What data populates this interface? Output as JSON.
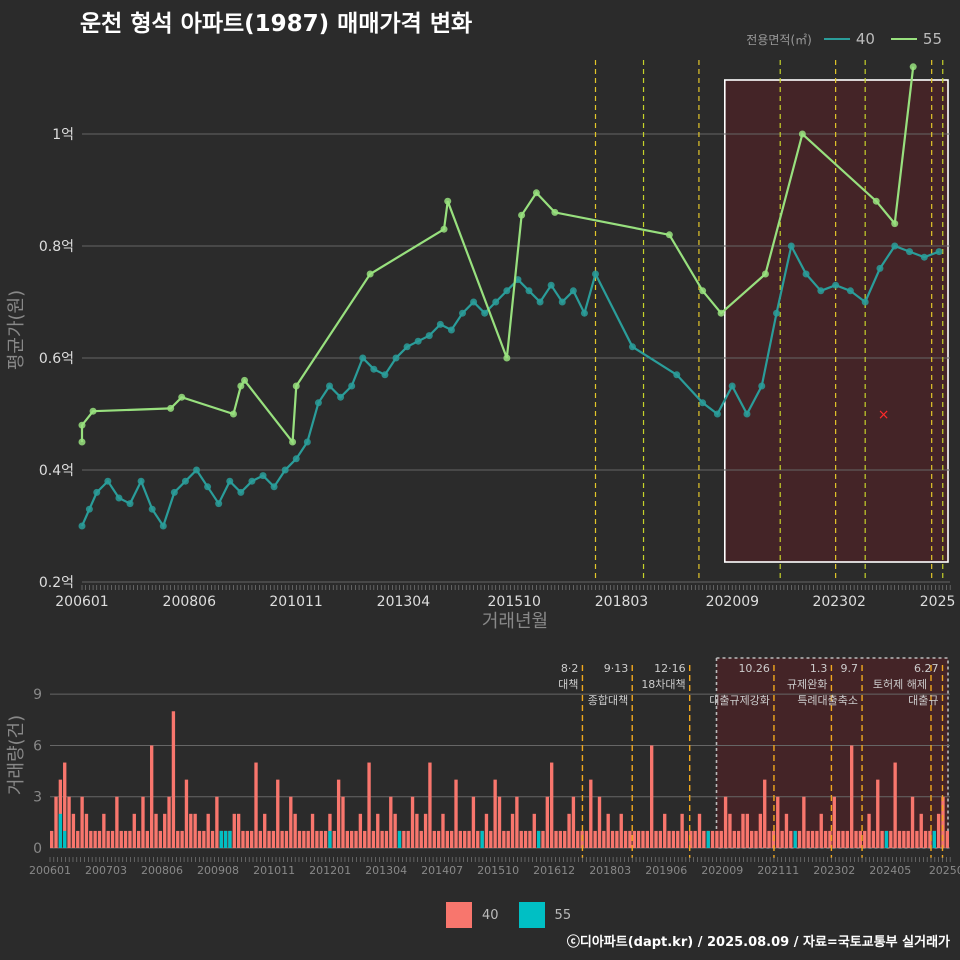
{
  "title": "운천 형석 아파트(1987) 매매가격 변화",
  "legend": {
    "title": "전용면적(㎡)",
    "items": [
      {
        "label": "40",
        "line_color": "#2a9d9a",
        "bar_color": "#f8766d"
      },
      {
        "label": "55",
        "line_color": "#98e07e",
        "bar_color": "#00bfc4"
      }
    ]
  },
  "footer": "ⓒ디아파트(dapt.kr) / 2025.08.09 / 자료=국토교통부 실거래가",
  "chart_data": [
    {
      "type": "line",
      "xlabel": "거래년월",
      "ylabel": "평균가(원)",
      "ylim": [
        0.2,
        1.15
      ],
      "y_ticks": [
        {
          "v": 0.2,
          "label": "0.2억"
        },
        {
          "v": 0.4,
          "label": "0.4억"
        },
        {
          "v": 0.6,
          "label": "0.6억"
        },
        {
          "v": 0.8,
          "label": "0.8억"
        },
        {
          "v": 1.0,
          "label": "1억"
        }
      ],
      "x_ticks": [
        "200601",
        "200806",
        "201011",
        "201304",
        "201510",
        "201803",
        "202009",
        "202302",
        "2025"
      ],
      "policy_lines": [
        "2017.08",
        "2018.09",
        "2019.12",
        "2021.10",
        "2023.01",
        "2023.09",
        "2025.03",
        "2025.06"
      ],
      "highlight": {
        "from": "2020.07",
        "to": "2025.07"
      },
      "marker_x": {
        "x": "2024.02",
        "y": 0.5
      },
      "series": [
        {
          "name": "55",
          "points": [
            [
              "2006.01",
              0.45
            ],
            [
              "2006.01",
              0.48
            ],
            [
              "2006.04",
              0.505
            ],
            [
              "2008.01",
              0.51
            ],
            [
              "2008.04",
              0.53
            ],
            [
              "2009.06",
              0.5
            ],
            [
              "2009.08",
              0.55
            ],
            [
              "2009.09",
              0.56
            ],
            [
              "2010.10",
              0.45
            ],
            [
              "2010.11",
              0.55
            ],
            [
              "2012.07",
              0.75
            ],
            [
              "2014.03",
              0.83
            ],
            [
              "2014.04",
              0.88
            ],
            [
              "2015.08",
              0.6
            ],
            [
              "2015.12",
              0.855
            ],
            [
              "2016.04",
              0.895
            ],
            [
              "2016.09",
              0.86
            ],
            [
              "2019.04",
              0.82
            ],
            [
              "2020.01",
              0.72
            ],
            [
              "2020.06",
              0.68
            ],
            [
              "2021.06",
              0.75
            ],
            [
              "2022.04",
              1.0
            ],
            [
              "2023.12",
              0.88
            ],
            [
              "2024.05",
              0.84
            ],
            [
              "2024.10",
              1.12
            ]
          ]
        },
        {
          "name": "40",
          "points": [
            [
              "2006.01",
              0.3
            ],
            [
              "2006.03",
              0.33
            ],
            [
              "2006.05",
              0.36
            ],
            [
              "2006.08",
              0.38
            ],
            [
              "2006.11",
              0.35
            ],
            [
              "2007.02",
              0.34
            ],
            [
              "2007.05",
              0.38
            ],
            [
              "2007.08",
              0.33
            ],
            [
              "2007.11",
              0.3
            ],
            [
              "2008.02",
              0.36
            ],
            [
              "2008.05",
              0.38
            ],
            [
              "2008.08",
              0.4
            ],
            [
              "2008.11",
              0.37
            ],
            [
              "2009.02",
              0.34
            ],
            [
              "2009.05",
              0.38
            ],
            [
              "2009.08",
              0.36
            ],
            [
              "2009.11",
              0.38
            ],
            [
              "2010.02",
              0.39
            ],
            [
              "2010.05",
              0.37
            ],
            [
              "2010.08",
              0.4
            ],
            [
              "2010.11",
              0.42
            ],
            [
              "2011.02",
              0.45
            ],
            [
              "2011.05",
              0.52
            ],
            [
              "2011.08",
              0.55
            ],
            [
              "2011.11",
              0.53
            ],
            [
              "2012.02",
              0.55
            ],
            [
              "2012.05",
              0.6
            ],
            [
              "2012.08",
              0.58
            ],
            [
              "2012.11",
              0.57
            ],
            [
              "2013.02",
              0.6
            ],
            [
              "2013.05",
              0.62
            ],
            [
              "2013.08",
              0.63
            ],
            [
              "2013.11",
              0.64
            ],
            [
              "2014.02",
              0.66
            ],
            [
              "2014.05",
              0.65
            ],
            [
              "2014.08",
              0.68
            ],
            [
              "2014.11",
              0.7
            ],
            [
              "2015.02",
              0.68
            ],
            [
              "2015.05",
              0.7
            ],
            [
              "2015.08",
              0.72
            ],
            [
              "2015.11",
              0.74
            ],
            [
              "2016.02",
              0.72
            ],
            [
              "2016.05",
              0.7
            ],
            [
              "2016.08",
              0.73
            ],
            [
              "2016.11",
              0.7
            ],
            [
              "2017.02",
              0.72
            ],
            [
              "2017.05",
              0.68
            ],
            [
              "2017.08",
              0.75
            ],
            [
              "2018.06",
              0.62
            ],
            [
              "2019.06",
              0.57
            ],
            [
              "2020.01",
              0.52
            ],
            [
              "2020.05",
              0.5
            ],
            [
              "2020.09",
              0.55
            ],
            [
              "2021.01",
              0.5
            ],
            [
              "2021.05",
              0.55
            ],
            [
              "2021.09",
              0.68
            ],
            [
              "2022.01",
              0.8
            ],
            [
              "2022.05",
              0.75
            ],
            [
              "2022.09",
              0.72
            ],
            [
              "2023.01",
              0.73
            ],
            [
              "2023.05",
              0.72
            ],
            [
              "2023.09",
              0.7
            ],
            [
              "2024.01",
              0.76
            ],
            [
              "2024.05",
              0.8
            ],
            [
              "2024.09",
              0.79
            ],
            [
              "2025.01",
              0.78
            ],
            [
              "2025.05",
              0.79
            ]
          ]
        }
      ]
    },
    {
      "type": "bar",
      "ylabel": "거래량(건)",
      "ylim": [
        0,
        11
      ],
      "y_ticks": [
        0,
        3,
        6,
        9
      ],
      "x_ticks": [
        "200601",
        "200703",
        "200806",
        "200908",
        "201011",
        "201201",
        "201304",
        "201407",
        "201510",
        "201612",
        "201803",
        "201906",
        "202009",
        "202111",
        "202302",
        "202405",
        "20250"
      ],
      "policies": [
        {
          "x": "2017.08",
          "date": "8·2",
          "text": "대책"
        },
        {
          "x": "2018.09",
          "date": "9·13",
          "text": "종합대책"
        },
        {
          "x": "2019.12",
          "date": "12·16",
          "text": "18차대책"
        },
        {
          "x": "2021.10",
          "date": "10.26",
          "text": "대출규제강화"
        },
        {
          "x": "2023.01",
          "date": "1.3",
          "text": "규제완화"
        },
        {
          "x": "2023.09",
          "date": "9.7",
          "text": "특례대출축소"
        },
        {
          "x": "2025.03",
          "date": "",
          "text": "토허제 해제"
        },
        {
          "x": "2025.06",
          "date": "6.27",
          "text": "대출규"
        }
      ],
      "series": [
        {
          "name": "40",
          "values": [
            1,
            3,
            4,
            5,
            3,
            2,
            1,
            3,
            2,
            1,
            1,
            1,
            2,
            1,
            1,
            3,
            1,
            1,
            1,
            2,
            1,
            3,
            1,
            6,
            2,
            1,
            2,
            3,
            8,
            1,
            1,
            4,
            2,
            2,
            1,
            1,
            2,
            1,
            3,
            1,
            1,
            1,
            2,
            2,
            1,
            1,
            1,
            5,
            1,
            2,
            1,
            1,
            4,
            1,
            1,
            3,
            2,
            1,
            1,
            1,
            2,
            1,
            1,
            1,
            2,
            1,
            4,
            3,
            1,
            1,
            1,
            2,
            1,
            5,
            1,
            2,
            1,
            1,
            3,
            2,
            1,
            1,
            1,
            3,
            2,
            1,
            2,
            5,
            1,
            1,
            2,
            1,
            1,
            4,
            1,
            1,
            1,
            3,
            1,
            1,
            2,
            1,
            4,
            3,
            1,
            1,
            2,
            3,
            1,
            1,
            1,
            2,
            1,
            1,
            3,
            5,
            1,
            1,
            1,
            2,
            3,
            1,
            1,
            1,
            4,
            1,
            3,
            1,
            2,
            1,
            1,
            2,
            1,
            1,
            1,
            1,
            1,
            1,
            6,
            1,
            1,
            2,
            1,
            1,
            1,
            2,
            1,
            1,
            1,
            2,
            1,
            1,
            1,
            1,
            1,
            3,
            2,
            1,
            1,
            2,
            2,
            1,
            1,
            2,
            4,
            1,
            1,
            3,
            1,
            2,
            1,
            1,
            1,
            3,
            1,
            1,
            1,
            2,
            1,
            1,
            3,
            1,
            1,
            1,
            6,
            1,
            1,
            1,
            2,
            1,
            4,
            1,
            1,
            1,
            5,
            1,
            1,
            1,
            3,
            1,
            2,
            1,
            1,
            1,
            2,
            3,
            1
          ]
        },
        {
          "name": "55",
          "values": [
            0,
            0,
            2,
            1,
            0,
            0,
            0,
            0,
            0,
            0,
            0,
            0,
            0,
            0,
            0,
            0,
            0,
            0,
            0,
            0,
            0,
            0,
            0,
            0,
            0,
            0,
            0,
            0,
            0,
            0,
            0,
            0,
            0,
            0,
            0,
            0,
            0,
            0,
            0,
            1,
            1,
            1,
            0,
            0,
            0,
            0,
            0,
            0,
            0,
            0,
            0,
            0,
            0,
            0,
            0,
            0,
            0,
            0,
            0,
            0,
            0,
            0,
            0,
            0,
            1,
            0,
            0,
            0,
            0,
            0,
            0,
            0,
            0,
            0,
            0,
            0,
            0,
            0,
            0,
            0,
            1,
            0,
            0,
            0,
            0,
            0,
            0,
            0,
            0,
            0,
            0,
            0,
            0,
            0,
            0,
            0,
            0,
            0,
            0,
            1,
            0,
            0,
            0,
            0,
            0,
            0,
            0,
            0,
            0,
            0,
            0,
            0,
            1,
            0,
            0,
            0,
            0,
            0,
            0,
            0,
            0,
            0,
            0,
            0,
            0,
            0,
            0,
            0,
            0,
            0,
            0,
            0,
            0,
            0,
            0,
            0,
            0,
            0,
            0,
            0,
            0,
            0,
            0,
            0,
            0,
            0,
            0,
            0,
            0,
            0,
            0,
            1,
            0,
            0,
            0,
            0,
            0,
            0,
            0,
            0,
            0,
            0,
            0,
            0,
            0,
            0,
            0,
            0,
            0,
            0,
            0,
            1,
            0,
            0,
            0,
            0,
            0,
            0,
            0,
            0,
            0,
            0,
            0,
            0,
            0,
            0,
            0,
            0,
            0,
            0,
            0,
            0,
            1,
            0,
            0,
            0,
            0,
            0,
            0,
            0,
            0,
            0,
            0,
            1,
            0,
            0,
            0
          ]
        }
      ]
    }
  ]
}
